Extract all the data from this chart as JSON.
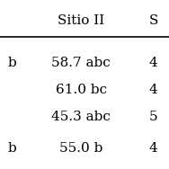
{
  "col2_header": "Sitio II",
  "col3_header": "S",
  "rows": [
    {
      "col1": "b",
      "col2": "58.7 abc",
      "col3": "4"
    },
    {
      "col1": "",
      "col2": "61.0 bc",
      "col3": "4"
    },
    {
      "col1": "",
      "col2": "45.3 abc",
      "col3": "5"
    },
    {
      "col1": "b",
      "col2": "55.0 b",
      "col3": "4"
    }
  ],
  "background_color": "#ffffff",
  "text_color": "#000000",
  "font_size": 11,
  "header_font_size": 11
}
